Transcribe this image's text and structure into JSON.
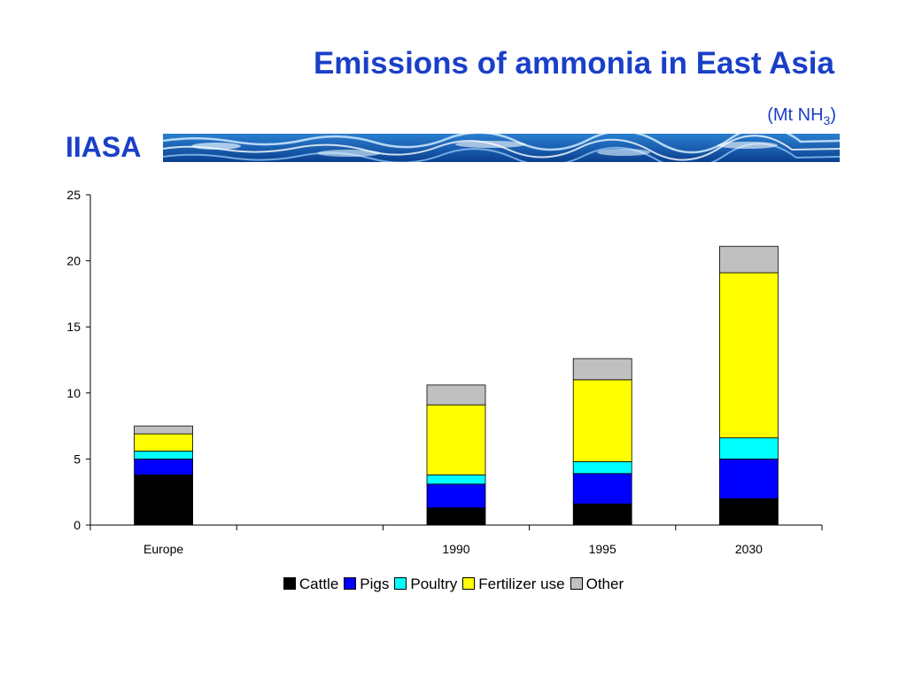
{
  "header": {
    "title": "Emissions of ammonia in East Asia",
    "unit_prefix": "(Mt NH",
    "unit_sub": "3",
    "unit_suffix": ")",
    "brand": "IIASA"
  },
  "colors": {
    "title": "#1a3fc8",
    "Cattle": "#000000",
    "Pigs": "#0000ff",
    "Poultry": "#00ffff",
    "Fertilizer use": "#ffff00",
    "Other": "#c0c0c0"
  },
  "chart_data": {
    "type": "bar",
    "stacked": true,
    "categories": [
      "Europe",
      "",
      "1990",
      "1995",
      "2030"
    ],
    "series": [
      {
        "name": "Cattle",
        "values": [
          3.8,
          null,
          1.3,
          1.6,
          2.0
        ]
      },
      {
        "name": "Pigs",
        "values": [
          1.2,
          null,
          1.8,
          2.3,
          3.0
        ]
      },
      {
        "name": "Poultry",
        "values": [
          0.6,
          null,
          0.7,
          0.9,
          1.6
        ]
      },
      {
        "name": "Fertilizer use",
        "values": [
          1.3,
          null,
          5.3,
          6.2,
          12.5
        ]
      },
      {
        "name": "Other",
        "values": [
          0.6,
          null,
          1.5,
          1.6,
          2.0
        ]
      }
    ],
    "ylim": [
      0,
      25
    ],
    "yticks": [
      "0",
      "5",
      "10",
      "15",
      "20",
      "25"
    ],
    "legend_position": "bottom",
    "grid": false
  }
}
